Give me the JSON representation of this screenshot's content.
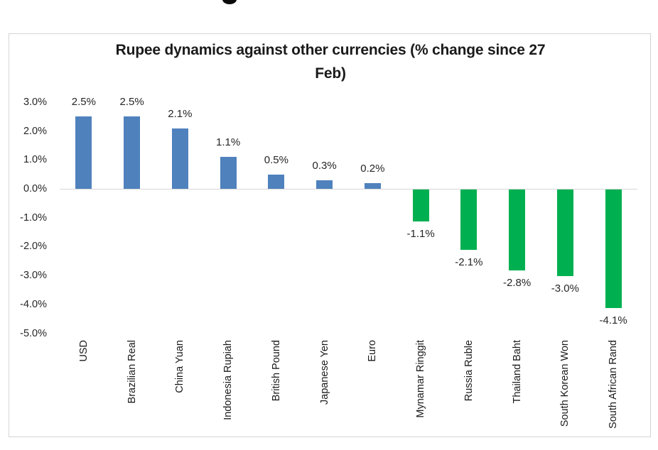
{
  "page": {
    "title_line1": "Rupee dynamics against other currencies (% change since 27",
    "title_line2": "Feb)"
  },
  "chart_data": {
    "type": "bar",
    "title": "Rupee dynamics against other currencies (% change since 27 Feb)",
    "xlabel": "",
    "ylabel": "",
    "categories": [
      "USD",
      "Brazilian Real",
      "China Yuan",
      "Indonesia Rupiah",
      "British Pound",
      "Japanese Yen",
      "Euro",
      "Mynamar Ringgit",
      "Russia Ruble",
      "Thailand Baht",
      "South Korean Won",
      "South African Rand"
    ],
    "values": [
      2.5,
      2.5,
      2.1,
      1.1,
      0.5,
      0.3,
      0.2,
      -1.1,
      -2.1,
      -2.8,
      -3.0,
      -4.1
    ],
    "data_labels": [
      "2.5%",
      "2.5%",
      "2.1%",
      "1.1%",
      "0.5%",
      "0.3%",
      "0.2%",
      "-1.1%",
      "-2.1%",
      "-2.8%",
      "-3.0%",
      "-4.1%"
    ],
    "y_ticks": [
      "3.0%",
      "2.0%",
      "1.0%",
      "0.0%",
      "-1.0%",
      "-2.0%",
      "-3.0%",
      "-4.0%",
      "-5.0%"
    ],
    "y_tick_values": [
      3,
      2,
      1,
      0,
      -1,
      -2,
      -3,
      -4,
      -5
    ],
    "ylim": [
      -5.0,
      3.0
    ],
    "grid": false,
    "legend_position": "none",
    "colors": {
      "positive_bar": "#4F81BD",
      "negative_bar": "#00B050",
      "axis_line": "#d6d6d6",
      "chart_border": "#d5d5d5",
      "text": "#262626"
    }
  }
}
